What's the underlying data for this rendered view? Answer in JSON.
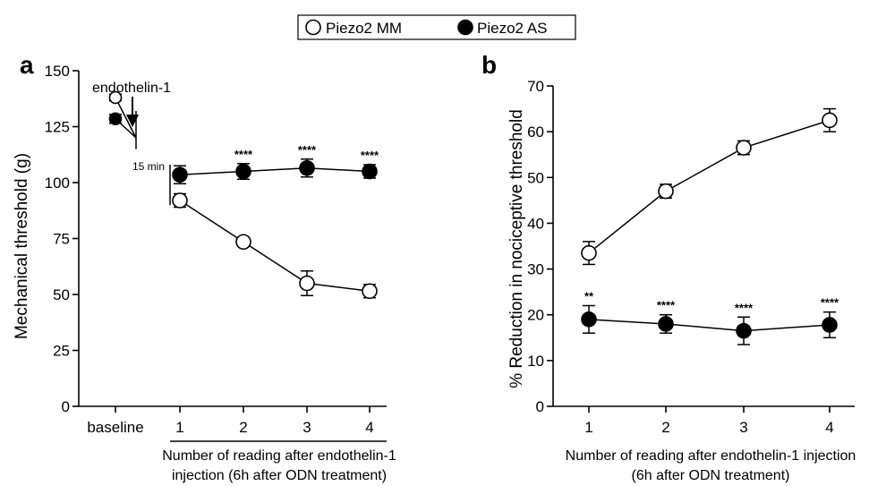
{
  "legend": {
    "items": [
      {
        "label": "Piezo2 MM",
        "marker": "open-circle"
      },
      {
        "label": "Piezo2 AS",
        "marker": "filled-circle"
      }
    ]
  },
  "colors": {
    "ink": "#000000",
    "open_fill": "#ffffff"
  },
  "chart_data": [
    {
      "panel_label": "a",
      "type": "line",
      "ylabel": "Mechanical threshold (g)",
      "xlabel": "Number of reading after endothelin-1 injection (6h after ODN treatment)",
      "xlabel_lines": [
        "Number of reading after endothelin-1",
        "injection (6h after ODN treatment)"
      ],
      "categories": [
        "baseline",
        "1",
        "2",
        "3",
        "4"
      ],
      "ylim": [
        0,
        150
      ],
      "yticks": [
        0,
        25,
        50,
        75,
        100,
        125,
        150
      ],
      "annotations": {
        "arrow_label": "endothelin-1",
        "interval_label": "15 min"
      },
      "series": [
        {
          "name": "Piezo2 MM",
          "marker": "open-circle",
          "baseline": {
            "value": 138,
            "err": 1.5
          },
          "readings": [
            {
              "x": 1,
              "value": 92,
              "err": 3
            },
            {
              "x": 2,
              "value": 73.5,
              "err": 2
            },
            {
              "x": 3,
              "value": 55,
              "err": 5.5
            },
            {
              "x": 4,
              "value": 51.5,
              "err": 3
            }
          ]
        },
        {
          "name": "Piezo2 AS",
          "marker": "filled-circle",
          "baseline": {
            "value": 128.5,
            "err": 2
          },
          "readings": [
            {
              "x": 1,
              "value": 103.5,
              "err": 4
            },
            {
              "x": 2,
              "value": 105,
              "err": 3.5
            },
            {
              "x": 3,
              "value": 106.5,
              "err": 4
            },
            {
              "x": 4,
              "value": 105,
              "err": 3
            }
          ]
        }
      ],
      "significance": [
        {
          "x": 2,
          "label": "****"
        },
        {
          "x": 3,
          "label": "****"
        },
        {
          "x": 4,
          "label": "****"
        }
      ]
    },
    {
      "panel_label": "b",
      "type": "line",
      "ylabel": "% Reduction in nociceptive threshold",
      "xlabel": "Number of reading after endothelin-1 injection (6h after ODN treatment)",
      "xlabel_lines": [
        "Number of reading after endothelin-1 injection",
        "(6h after ODN treatment)"
      ],
      "categories": [
        "1",
        "2",
        "3",
        "4"
      ],
      "ylim": [
        0,
        70
      ],
      "yticks": [
        0,
        10,
        20,
        30,
        40,
        50,
        60,
        70
      ],
      "series": [
        {
          "name": "Piezo2 MM",
          "marker": "open-circle",
          "readings": [
            {
              "x": 1,
              "value": 33.5,
              "err": 2.5
            },
            {
              "x": 2,
              "value": 47,
              "err": 1.5
            },
            {
              "x": 3,
              "value": 56.5,
              "err": 1.5
            },
            {
              "x": 4,
              "value": 62.5,
              "err": 2.5
            }
          ]
        },
        {
          "name": "Piezo2 AS",
          "marker": "filled-circle",
          "readings": [
            {
              "x": 1,
              "value": 19,
              "err": 3
            },
            {
              "x": 2,
              "value": 18,
              "err": 2
            },
            {
              "x": 3,
              "value": 16.5,
              "err": 3
            },
            {
              "x": 4,
              "value": 17.8,
              "err": 2.8
            }
          ]
        }
      ],
      "significance": [
        {
          "x": 1,
          "label": "**"
        },
        {
          "x": 2,
          "label": "****"
        },
        {
          "x": 3,
          "label": "****"
        },
        {
          "x": 4,
          "label": "****"
        }
      ]
    }
  ]
}
